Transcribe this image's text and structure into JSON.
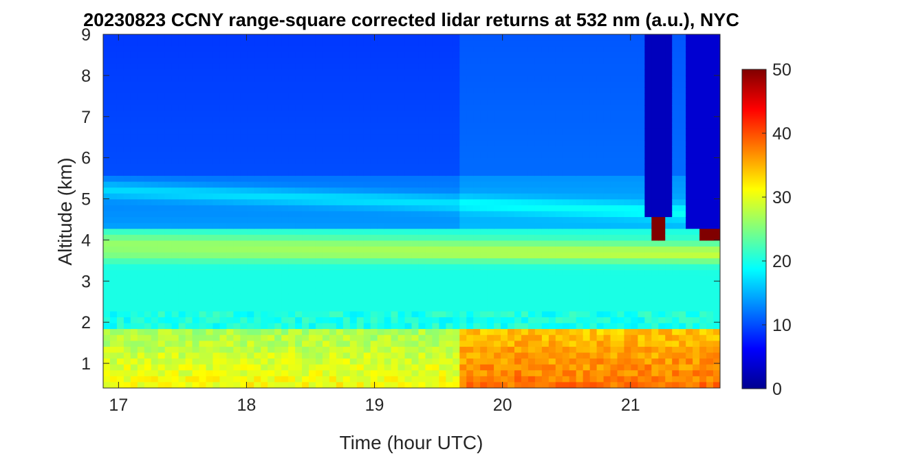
{
  "chart_data": {
    "type": "heatmap",
    "title": "20230823 CCNY range-square corrected lidar returns at 532 nm (a.u.), NYC",
    "xlabel": "Time (hour UTC)",
    "ylabel": "Altitude (km)",
    "xlim": [
      16.88,
      21.7
    ],
    "ylim": [
      0.4,
      9
    ],
    "x_ticks": [
      17,
      18,
      19,
      20,
      21
    ],
    "y_ticks": [
      1,
      2,
      3,
      4,
      5,
      6,
      7,
      8,
      9
    ],
    "colorbar": {
      "range": [
        0,
        50
      ],
      "ticks": [
        0,
        10,
        20,
        30,
        40,
        50
      ],
      "colormap": "jet"
    },
    "features": {
      "boundary_layer_top_km": 1.8,
      "elevated_layer_top_km": 4.25,
      "elevated_layer_core_km": 3.9,
      "upper_layer_km": 5.2,
      "aerosol_layer_start_hour": 19.68,
      "cloud_hour": 21.22,
      "cloud_altitude_km": 4.3,
      "attenuated_columns_start_hour": 21.1
    }
  }
}
